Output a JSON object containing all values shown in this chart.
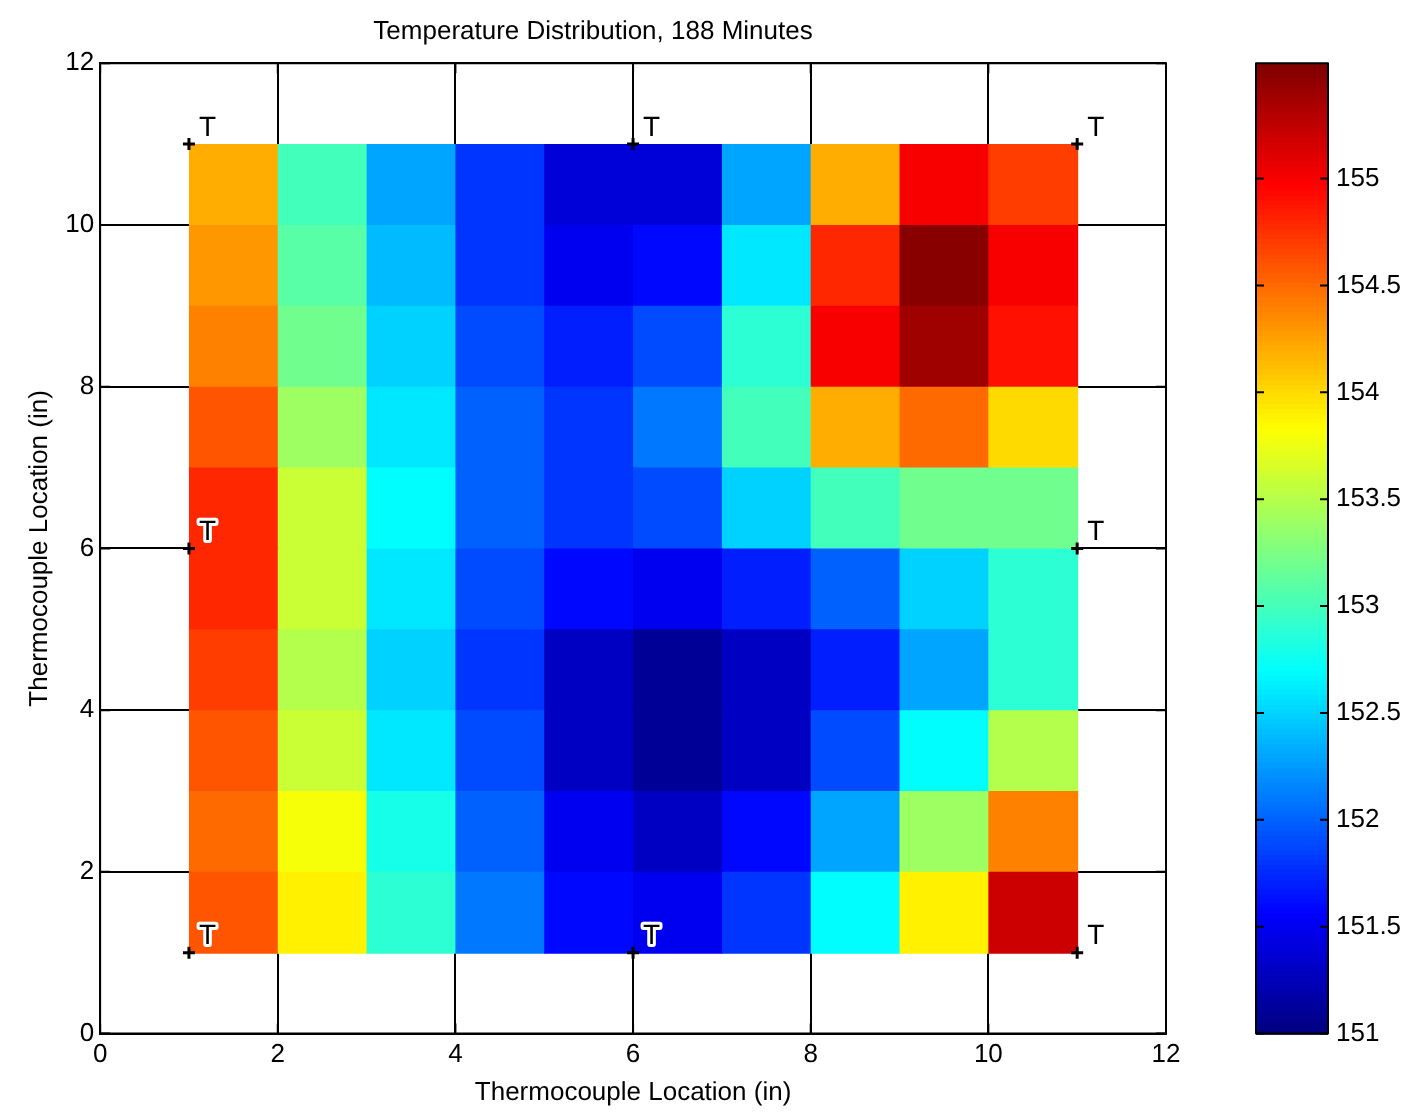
{
  "chart_data": {
    "type": "heatmap",
    "title": "Temperature Distribution, 188 Minutes",
    "xlabel": "Thermocouple Location (in)",
    "ylabel": "Thermocouple Location (in)",
    "x": [
      1.5,
      2.5,
      3.5,
      4.5,
      5.5,
      6.5,
      7.5,
      8.5,
      9.5,
      10.5
    ],
    "y": [
      10.5,
      9.5,
      8.5,
      7.5,
      6.5,
      5.5,
      4.5,
      3.5,
      2.5,
      1.5
    ],
    "cells": [
      [
        154.2,
        153.0,
        152.3,
        151.8,
        151.4,
        151.4,
        152.3,
        154.2,
        155.0,
        154.7
      ],
      [
        154.3,
        153.1,
        152.4,
        151.8,
        151.5,
        151.6,
        152.6,
        154.8,
        155.5,
        155.0
      ],
      [
        154.4,
        153.2,
        152.5,
        151.9,
        151.7,
        151.9,
        152.9,
        155.0,
        155.4,
        154.9
      ],
      [
        154.6,
        153.4,
        152.6,
        152.0,
        151.8,
        152.1,
        153.0,
        154.2,
        154.5,
        154.0
      ],
      [
        154.8,
        153.6,
        152.7,
        152.0,
        151.8,
        151.9,
        152.5,
        153.0,
        153.2,
        153.2
      ],
      [
        154.8,
        153.6,
        152.6,
        151.9,
        151.6,
        151.5,
        151.7,
        152.0,
        152.5,
        152.9
      ],
      [
        154.7,
        153.5,
        152.5,
        151.8,
        151.3,
        151.1,
        151.3,
        151.7,
        152.3,
        152.9
      ],
      [
        154.6,
        153.6,
        152.6,
        151.9,
        151.3,
        151.1,
        151.3,
        151.9,
        152.7,
        153.5
      ],
      [
        154.5,
        153.8,
        152.8,
        152.0,
        151.5,
        151.3,
        151.6,
        152.3,
        153.4,
        154.4
      ],
      [
        154.6,
        153.9,
        152.9,
        152.1,
        151.6,
        151.5,
        151.8,
        152.7,
        153.9,
        155.2
      ]
    ],
    "xlim": [
      0,
      12
    ],
    "ylim": [
      0,
      12
    ],
    "xticks": [
      0,
      2,
      4,
      6,
      8,
      10,
      12
    ],
    "yticks": [
      0,
      2,
      4,
      6,
      8,
      10,
      12
    ],
    "clim": [
      151,
      155.54
    ],
    "cticks": [
      151,
      151.5,
      152,
      152.5,
      153,
      153.5,
      154,
      154.5,
      155
    ],
    "grid": true,
    "series": [
      {
        "type": "scatter",
        "marker": "cross",
        "color": "#000000",
        "x": [
          1,
          6,
          11,
          1,
          11,
          1,
          6,
          11
        ],
        "values": [
          11,
          11,
          11,
          6,
          6,
          1,
          1,
          1
        ]
      }
    ],
    "annotations": [
      {
        "text": "T",
        "x": 1,
        "y": 11
      },
      {
        "text": "T",
        "x": 6,
        "y": 11
      },
      {
        "text": "T",
        "x": 11,
        "y": 11
      },
      {
        "text": "T",
        "x": 1,
        "y": 6
      },
      {
        "text": "T",
        "x": 11,
        "y": 6
      },
      {
        "text": "T",
        "x": 1,
        "y": 1
      },
      {
        "text": "T",
        "x": 6,
        "y": 1
      },
      {
        "text": "T",
        "x": 11,
        "y": 1
      }
    ]
  }
}
